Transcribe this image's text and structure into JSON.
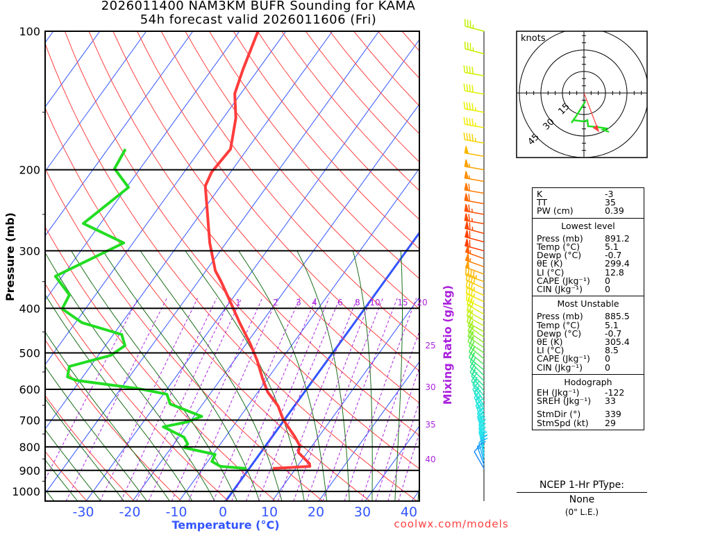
{
  "title": {
    "line1": "2026011400 NAM3KM BUFR Sounding for KAMA",
    "line2": "54h forecast valid 2026011606 (Fri)"
  },
  "chart_data": {
    "type": "line",
    "subtype": "skew-t log-p",
    "xlabel": "Temperature (°C)",
    "ylabel": "Pressure (mb)",
    "y2label": "Mixing Ratio (g/kg)",
    "credit": "coolwx.com/models",
    "pressure_ticks": [
      100,
      200,
      300,
      400,
      500,
      600,
      700,
      800,
      900,
      1000
    ],
    "temperature_ticks": [
      -30,
      -20,
      -10,
      0,
      10,
      20,
      30,
      40
    ],
    "temperature_range_at_bottom": [
      -39,
      42
    ],
    "pressure_range": [
      100,
      1050
    ],
    "mixing_ratio_labels": [
      "1",
      "2",
      "3",
      "4",
      "6",
      "8",
      "10",
      "15",
      "20",
      "25",
      "30",
      "35",
      "40"
    ],
    "series": [
      {
        "name": "Temperature",
        "color": "#ff3c3c",
        "points": [
          [
            100,
            -66.0
          ],
          [
            121,
            -63.3
          ],
          [
            136.7,
            -61.3
          ],
          [
            154.3,
            -57.3
          ],
          [
            180.4,
            -53.6
          ],
          [
            202.4,
            -54.1
          ],
          [
            216.9,
            -53.3
          ],
          [
            288.4,
            -43.5
          ],
          [
            331.3,
            -38.0
          ],
          [
            349,
            -35.2
          ],
          [
            380.7,
            -30.8
          ],
          [
            429.8,
            -24.7
          ],
          [
            477,
            -19.2
          ],
          [
            520,
            -15.0
          ],
          [
            567,
            -11.2
          ],
          [
            608,
            -7.9
          ],
          [
            652,
            -3.5
          ],
          [
            699,
            -0.2
          ],
          [
            762,
            5.0
          ],
          [
            795,
            7.3
          ],
          [
            823,
            8.1
          ],
          [
            870,
            12.2
          ],
          [
            882,
            12.7
          ],
          [
            891.2,
            5.1
          ]
        ]
      },
      {
        "name": "Dewpoint",
        "color": "#22dd22",
        "points": [
          [
            180.4,
            -76.2
          ],
          [
            198.9,
            -75.5
          ],
          [
            218.4,
            -69.6
          ],
          [
            261.6,
            -73.7
          ],
          [
            288.4,
            -62.0
          ],
          [
            340.7,
            -71.5
          ],
          [
            374,
            -65.6
          ],
          [
            401,
            -65.0
          ],
          [
            429.8,
            -58.6
          ],
          [
            456,
            -48.2
          ],
          [
            482,
            -45.8
          ],
          [
            506,
            -47.3
          ],
          [
            535,
            -54.5
          ],
          [
            563.5,
            -53.3
          ],
          [
            573.5,
            -50.9
          ],
          [
            598,
            -36.1
          ],
          [
            615,
            -29.2
          ],
          [
            645.5,
            -27.0
          ],
          [
            687,
            -18.3
          ],
          [
            706,
            -20.5
          ],
          [
            724,
            -24.9
          ],
          [
            762,
            -18.9
          ],
          [
            789,
            -17.0
          ],
          [
            803,
            -17.2
          ],
          [
            831,
            -9.5
          ],
          [
            861,
            -9.1
          ],
          [
            882,
            -6.5
          ],
          [
            891.2,
            -0.7
          ]
        ]
      }
    ],
    "winds": [
      [
        100,
        285,
        35
      ],
      [
        112,
        285,
        35
      ],
      [
        125,
        280,
        40
      ],
      [
        137,
        280,
        40
      ],
      [
        150,
        280,
        45
      ],
      [
        162,
        280,
        45
      ],
      [
        175,
        280,
        45
      ],
      [
        187,
        280,
        50
      ],
      [
        200,
        280,
        55
      ],
      [
        212,
        280,
        55
      ],
      [
        225,
        280,
        60
      ],
      [
        237,
        280,
        60
      ],
      [
        250,
        280,
        65
      ],
      [
        262,
        280,
        65
      ],
      [
        275,
        285,
        65
      ],
      [
        287,
        285,
        60
      ],
      [
        300,
        285,
        60
      ],
      [
        312,
        290,
        55
      ],
      [
        325,
        290,
        55
      ],
      [
        337,
        290,
        50
      ],
      [
        350,
        290,
        45
      ],
      [
        362,
        295,
        40
      ],
      [
        375,
        295,
        35
      ],
      [
        387,
        295,
        35
      ],
      [
        400,
        295,
        30
      ],
      [
        412,
        300,
        30
      ],
      [
        425,
        300,
        25
      ],
      [
        437,
        300,
        25
      ],
      [
        450,
        300,
        25
      ],
      [
        462,
        305,
        25
      ],
      [
        475,
        305,
        25
      ],
      [
        487,
        305,
        25
      ],
      [
        500,
        305,
        25
      ],
      [
        515,
        310,
        25
      ],
      [
        530,
        310,
        25
      ],
      [
        545,
        310,
        20
      ],
      [
        560,
        315,
        20
      ],
      [
        575,
        315,
        20
      ],
      [
        590,
        315,
        20
      ],
      [
        605,
        320,
        20
      ],
      [
        620,
        320,
        20
      ],
      [
        635,
        325,
        20
      ],
      [
        650,
        325,
        20
      ],
      [
        665,
        330,
        20
      ],
      [
        680,
        330,
        20
      ],
      [
        695,
        335,
        20
      ],
      [
        710,
        335,
        20
      ],
      [
        725,
        340,
        20
      ],
      [
        740,
        340,
        25
      ],
      [
        755,
        340,
        25
      ],
      [
        770,
        345,
        25
      ],
      [
        785,
        345,
        25
      ],
      [
        800,
        345,
        25
      ],
      [
        815,
        345,
        25
      ],
      [
        830,
        350,
        25
      ],
      [
        845,
        350,
        20
      ],
      [
        860,
        345,
        20
      ],
      [
        875,
        340,
        15
      ],
      [
        891,
        330,
        10
      ]
    ],
    "hodograph": {
      "units_label": "knots",
      "ring_labels": [
        "15",
        "30",
        "45"
      ],
      "rings_kt": [
        15,
        30,
        45
      ],
      "trace_uv": [
        [
          1,
          -5.8
        ],
        [
          -5.3,
          -16
        ],
        [
          -8.7,
          -20.8
        ],
        [
          -7.3,
          -18.9
        ],
        [
          -0.5,
          -19.8
        ],
        [
          2.4,
          -18.9
        ],
        [
          2.9,
          -23.2
        ],
        [
          9.2,
          -23.7
        ],
        [
          15.5,
          -24.7
        ],
        [
          13.1,
          -25.6
        ],
        [
          17.4,
          -27.1
        ]
      ],
      "storm_motion_dir": 339,
      "storm_motion_kt": 29,
      "trace_color": "#22dd22",
      "storm_color": "#ff3c3c"
    }
  },
  "indices": [
    {
      "label": "K",
      "value": "-3"
    },
    {
      "label": "TT",
      "value": "35"
    },
    {
      "label": "PW (cm)",
      "value": "0.39"
    }
  ],
  "lowest_level": {
    "header": "Lowest level",
    "rows": [
      {
        "label": "Press (mb)",
        "value": "891.2"
      },
      {
        "label": "Temp (°C)",
        "value": "5.1"
      },
      {
        "label": "Dewp (°C)",
        "value": "-0.7"
      },
      {
        "label": "θE (K)",
        "value": "299.4"
      },
      {
        "label": "LI (°C)",
        "value": "12.8"
      },
      {
        "label": "CAPE (Jkg⁻¹)",
        "value": "0"
      },
      {
        "label": "CIN (Jkg⁻¹)",
        "value": "0"
      }
    ]
  },
  "most_unstable": {
    "header": "Most Unstable",
    "rows": [
      {
        "label": "Press (mb)",
        "value": "885.5"
      },
      {
        "label": "Temp (°C)",
        "value": "5.1"
      },
      {
        "label": "Dewp (°C)",
        "value": "-0.7"
      },
      {
        "label": "θE (K)",
        "value": "305.4"
      },
      {
        "label": "LI (°C)",
        "value": "8.5"
      },
      {
        "label": "CAPE (Jkg⁻¹)",
        "value": "0"
      },
      {
        "label": "CIN (Jkg⁻¹)",
        "value": "0"
      }
    ]
  },
  "hodograph_stats": {
    "header": "Hodograph",
    "rows": [
      {
        "label": "EH (Jkg⁻¹)",
        "value": "-122"
      },
      {
        "label": "SREH (Jkg⁻¹)",
        "value": "33"
      },
      {
        "label": "StmDir (°)",
        "value": "339"
      },
      {
        "label": "StmSpd (kt)",
        "value": "29"
      }
    ]
  },
  "ptype": {
    "header": "NCEP 1-Hr PType:",
    "value": "None",
    "snow": "(0\" L.E.)"
  }
}
